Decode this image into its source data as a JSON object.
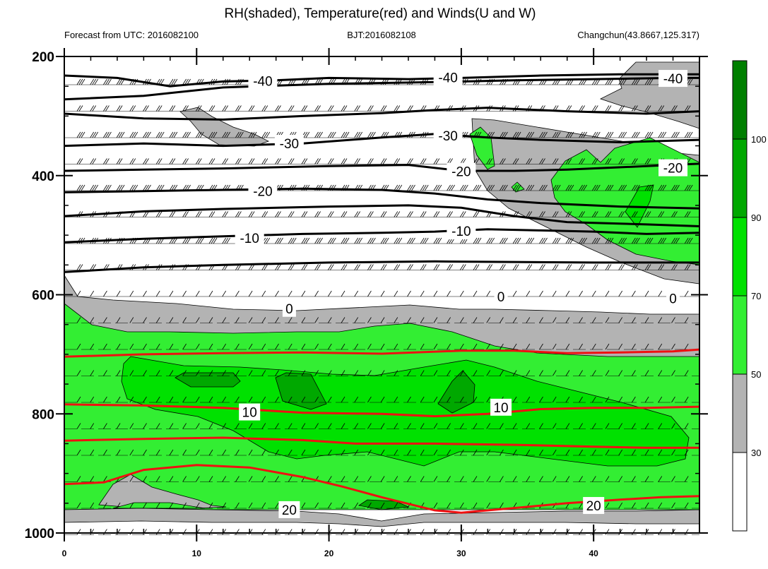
{
  "chart_data": {
    "type": "heatmap",
    "title": "RH(shaded), Temperature(red) and Winds(U and W)",
    "left_subtitle": "Forecast from UTC: 2016082100",
    "center_subtitle": "BJT:2016082108",
    "right_subtitle": "Changchun(43.8667,125.317)",
    "xlim": [
      0,
      48
    ],
    "ylim": [
      1000,
      200
    ],
    "x_ticks": [
      "0",
      "10",
      "20",
      "30",
      "40"
    ],
    "y_ticks": [
      "200",
      "400",
      "600",
      "800",
      "1000"
    ],
    "colorbar": {
      "levels": [
        "30",
        "50",
        "70",
        "90",
        "100"
      ],
      "colors": [
        "#ffffff",
        "#b3b3b3",
        "#33ee33",
        "#00e100",
        "#00a800",
        "#007f00"
      ]
    },
    "temperature_contours": [
      {
        "label": "-40",
        "color": "#000000",
        "points": [
          [
            0,
            232
          ],
          [
            4,
            236
          ],
          [
            8,
            250
          ],
          [
            12,
            242
          ],
          [
            16,
            240
          ],
          [
            20,
            236
          ],
          [
            26,
            238
          ],
          [
            30,
            236
          ],
          [
            36,
            232
          ],
          [
            42,
            230
          ],
          [
            48,
            230
          ]
        ]
      },
      {
        "label": "-40",
        "color": "#000000",
        "points": [
          [
            0,
            272
          ],
          [
            6,
            266
          ],
          [
            12,
            252
          ],
          [
            20,
            246
          ],
          [
            28,
            243
          ],
          [
            34,
            240
          ],
          [
            40,
            238
          ],
          [
            46,
            236
          ],
          [
            48,
            236
          ]
        ]
      },
      {
        "label": "-40",
        "color": "#000000",
        "points": [
          [
            0,
            296
          ],
          [
            6,
            304
          ],
          [
            12,
            306
          ],
          [
            18,
            300
          ],
          [
            24,
            295
          ],
          [
            28,
            290
          ],
          [
            32,
            286
          ],
          [
            38,
            292
          ],
          [
            44,
            296
          ],
          [
            48,
            292
          ]
        ]
      },
      {
        "label": "-30",
        "color": "#000000",
        "points": [
          [
            0,
            350
          ],
          [
            6,
            346
          ],
          [
            12,
            350
          ],
          [
            18,
            346
          ],
          [
            24,
            336
          ],
          [
            28,
            330
          ],
          [
            32,
            336
          ],
          [
            36,
            340
          ],
          [
            42,
            344
          ],
          [
            48,
            340
          ]
        ]
      },
      {
        "label": "-20",
        "color": "#000000",
        "points": [
          [
            0,
            392
          ],
          [
            6,
            390
          ],
          [
            12,
            388
          ],
          [
            20,
            384
          ],
          [
            26,
            382
          ],
          [
            30,
            392
          ],
          [
            34,
            392
          ],
          [
            38,
            390
          ],
          [
            44,
            384
          ],
          [
            48,
            380
          ]
        ]
      },
      {
        "label": "-20",
        "color": "#000000",
        "points": [
          [
            0,
            428
          ],
          [
            6,
            426
          ],
          [
            12,
            424
          ],
          [
            18,
            422
          ],
          [
            24,
            424
          ],
          [
            28,
            430
          ],
          [
            32,
            440
          ],
          [
            36,
            446
          ],
          [
            42,
            452
          ],
          [
            48,
            455
          ]
        ]
      },
      {
        "label": "-20",
        "color": "#000000",
        "points": [
          [
            0,
            468
          ],
          [
            6,
            460
          ],
          [
            12,
            456
          ],
          [
            20,
            452
          ],
          [
            26,
            450
          ],
          [
            30,
            454
          ],
          [
            34,
            468
          ],
          [
            38,
            478
          ],
          [
            44,
            482
          ],
          [
            48,
            485
          ]
        ]
      },
      {
        "label": "-10",
        "color": "#000000",
        "points": [
          [
            0,
            512
          ],
          [
            6,
            506
          ],
          [
            12,
            502
          ],
          [
            18,
            498
          ],
          [
            24,
            496
          ],
          [
            28,
            494
          ],
          [
            32,
            490
          ],
          [
            36,
            492
          ],
          [
            40,
            494
          ],
          [
            44,
            498
          ],
          [
            48,
            496
          ]
        ]
      },
      {
        "label": "-10",
        "color": "#000000",
        "points": [
          [
            0,
            562
          ],
          [
            6,
            554
          ],
          [
            12,
            550
          ],
          [
            20,
            546
          ],
          [
            28,
            544
          ],
          [
            34,
            545
          ],
          [
            40,
            546
          ],
          [
            48,
            546
          ]
        ]
      },
      {
        "label": "10",
        "color": "#ee1111",
        "points": [
          [
            0,
            704
          ],
          [
            6,
            700
          ],
          [
            12,
            698
          ],
          [
            18,
            697
          ],
          [
            24,
            699
          ],
          [
            30,
            694
          ],
          [
            34,
            694
          ],
          [
            38,
            698
          ],
          [
            42,
            697
          ],
          [
            46,
            695
          ],
          [
            48,
            692
          ]
        ]
      },
      {
        "label": "10",
        "color": "#ee1111",
        "points": [
          [
            0,
            784
          ],
          [
            6,
            786
          ],
          [
            12,
            790
          ],
          [
            18,
            798
          ],
          [
            24,
            800
          ],
          [
            28,
            804
          ],
          [
            32,
            800
          ],
          [
            36,
            792
          ],
          [
            40,
            790
          ],
          [
            44,
            790
          ],
          [
            48,
            788
          ]
        ]
      },
      {
        "label": "20",
        "color": "#ee1111",
        "points": [
          [
            0,
            845
          ],
          [
            6,
            842
          ],
          [
            12,
            840
          ],
          [
            18,
            844
          ],
          [
            22,
            850
          ],
          [
            28,
            850
          ],
          [
            34,
            852
          ],
          [
            40,
            855
          ],
          [
            44,
            857
          ],
          [
            48,
            857
          ]
        ]
      },
      {
        "label": "20",
        "color": "#ee1111",
        "points": [
          [
            0,
            918
          ],
          [
            3,
            915
          ],
          [
            6,
            894
          ],
          [
            10,
            886
          ],
          [
            14,
            890
          ],
          [
            18,
            906
          ],
          [
            21,
            922
          ],
          [
            24,
            940
          ],
          [
            28,
            962
          ],
          [
            30,
            966
          ],
          [
            34,
            958
          ],
          [
            38,
            950
          ],
          [
            42,
            944
          ],
          [
            45,
            940
          ],
          [
            48,
            938
          ]
        ]
      }
    ],
    "contour_labels": [
      {
        "text": "-40",
        "x": 15,
        "y": 242
      },
      {
        "text": "-40",
        "x": 29,
        "y": 236
      },
      {
        "text": "-40",
        "x": 46,
        "y": 238
      },
      {
        "text": "-30",
        "x": 17,
        "y": 347
      },
      {
        "text": "-30",
        "x": 29,
        "y": 334
      },
      {
        "text": "-20",
        "x": 15,
        "y": 427
      },
      {
        "text": "-20",
        "x": 30,
        "y": 394
      },
      {
        "text": "-20",
        "x": 46,
        "y": 388
      },
      {
        "text": "-10",
        "x": 14,
        "y": 506
      },
      {
        "text": "-10",
        "x": 30,
        "y": 494
      },
      {
        "text": "0",
        "x": 17,
        "y": 624
      },
      {
        "text": "0",
        "x": 33,
        "y": 604
      },
      {
        "text": "0",
        "x": 46,
        "y": 607
      },
      {
        "text": "10",
        "x": 14,
        "y": 798
      },
      {
        "text": "10",
        "x": 33,
        "y": 790
      },
      {
        "text": "20",
        "x": 17,
        "y": 962
      },
      {
        "text": "20",
        "x": 40,
        "y": 955
      }
    ]
  }
}
